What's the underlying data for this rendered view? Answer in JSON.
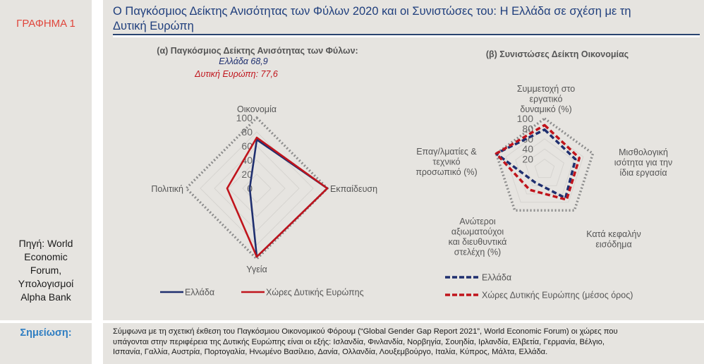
{
  "sidebar": {
    "graph_label": "ΓΡΑΦΗΜΑ 1",
    "source_lines": [
      "Πηγή: World",
      "Economic",
      "Forum,",
      "Υπολογισμοί",
      "Alpha Bank"
    ],
    "note_label": "Σημείωση:"
  },
  "header": {
    "title_line1": "Ο Παγκόσμιος Δείκτης Ανισότητας των Φύλων 2020 και οι Συνιστώσες του: Η Ελλάδα σε σχέση με τη",
    "title_line2": "Δυτική Ευρώπη"
  },
  "note": {
    "lines": [
      "Σύμφωνα με τη σχετική έκθεση του Παγκόσμιου Οικονομικού Φόρουμ (“Global Gender Gap Report 2021”, World Economic Forum) οι χώρες που",
      "υπάγονται στην περιφέρεια της Δυτικής Ευρώπης είναι οι εξής: Ισλανδία, Φινλανδία, Νορβηγία, Σουηδία, Ιρλανδία, Ελβετία, Γερμανία, Βέλγιο,",
      "Ισπανία, Γαλλία, Αυστρία, Πορτογαλία, Ηνωμένο Βασίλειο, Δανία, Ολλανδία, Λουξεμβούργο, Ιταλία, Κύπρος, Μάλτα, Ελλάδα."
    ]
  },
  "colors": {
    "greece": "#1f2f6f",
    "western_europe": "#c0141c",
    "outline": "#8c8c8c",
    "grid": "#d6d4d0",
    "accent_red": "#e0463c",
    "accent_blue": "#2f7ec2"
  },
  "chart_data": [
    {
      "type": "radar",
      "title": "(α) Παγκόσμιος Δείκτης Ανισότητας των Φύλων:",
      "subtitle_greece": "Ελλάδα 68,9",
      "subtitle_we": "Δυτική Ευρώπη: 77,6",
      "categories": [
        "Οικονομία",
        "Εκπαίδευση",
        "Υγεία",
        "Πολιτική"
      ],
      "ticks": [
        "0",
        "20",
        "40",
        "60",
        "80",
        "100"
      ],
      "range": [
        0,
        100
      ],
      "series": [
        {
          "name": "Ελλάδα",
          "values": [
            69,
            100,
            97,
            10
          ],
          "style": "solid"
        },
        {
          "name": "Χώρες Δυτικής Ευρώπης",
          "values": [
            72,
            100,
            97,
            42
          ],
          "style": "solid"
        },
        {
          "name": "max",
          "values": [
            100,
            100,
            100,
            100
          ],
          "style": "dotted"
        }
      ],
      "legend": [
        "Ελλάδα",
        "Χώρες Δυτικής Ευρώπης"
      ],
      "legend_position": "bottom"
    },
    {
      "type": "radar",
      "title": "(β) Συνιστώσες Δείκτη Οικονομίας",
      "categories": [
        [
          "Συμμετοχή στο",
          "εργατικό",
          "δυναμικό (%)"
        ],
        [
          "Μισθολογική",
          "ισότητα για την",
          "ίδια εργασία"
        ],
        [
          "Κατά κεφαλήν",
          "εισόδημα"
        ],
        [
          "Ανώτεροι",
          "αξιωματούχοι",
          "και διευθυντικά",
          "στελέχη (%)"
        ],
        [
          "Επαγ/λματίες &",
          "τεχνικό",
          "προσωπικό (%)"
        ]
      ],
      "ticks": [
        "20",
        "40",
        "60",
        "80",
        "100"
      ],
      "range": [
        0,
        100
      ],
      "series": [
        {
          "name": "Ελλάδα",
          "values": [
            78,
            64,
            70,
            32,
            100
          ],
          "style": "dashed"
        },
        {
          "name": "Χώρες Δυτικής Ευρώπης (μέσος όρος)",
          "values": [
            87,
            72,
            74,
            50,
            100
          ],
          "style": "dashed"
        },
        {
          "name": "max",
          "values": [
            100,
            100,
            100,
            100,
            100
          ],
          "style": "dotted"
        }
      ],
      "legend": [
        "Ελλάδα",
        "Χώρες Δυτικής Ευρώπης (μέσος όρος)"
      ],
      "legend_position": "bottom"
    }
  ]
}
